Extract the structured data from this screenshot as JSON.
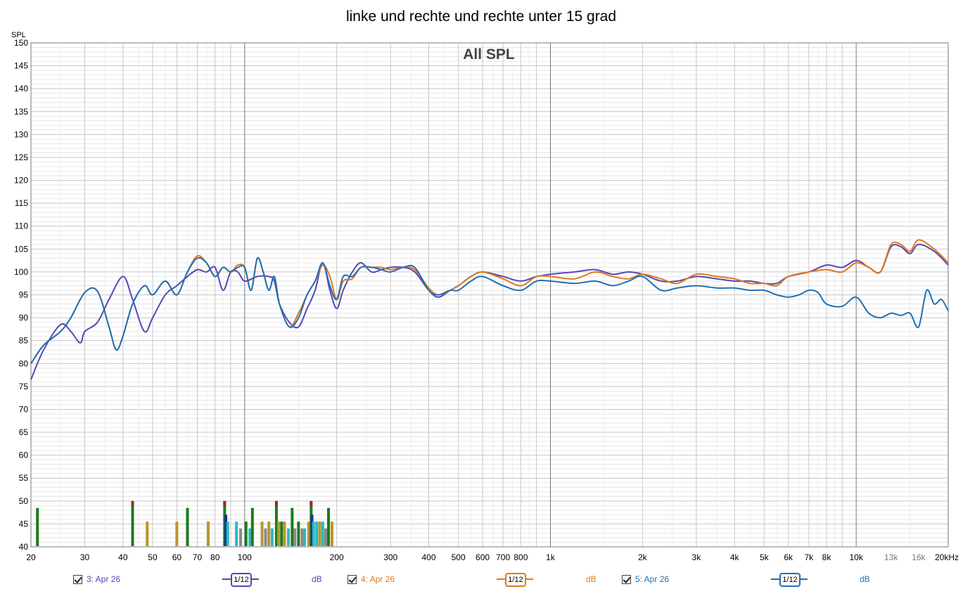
{
  "chart_data": {
    "type": "line",
    "title": "linke und rechte und rechte unter 15 grad",
    "subtitle": "All SPL",
    "ylabel": "SPL",
    "ylim": [
      40,
      150
    ],
    "xlim": [
      20,
      20000
    ],
    "xscale": "log",
    "grid": true,
    "y_ticks": [
      "40",
      "45",
      "50",
      "55",
      "60",
      "65",
      "70",
      "75",
      "80",
      "85",
      "90",
      "95",
      "100",
      "105",
      "110",
      "115",
      "120",
      "125",
      "130",
      "135",
      "140",
      "145",
      "150"
    ],
    "x_ticks": [
      {
        "value": 20,
        "label": "20"
      },
      {
        "value": 30,
        "label": "30"
      },
      {
        "value": 40,
        "label": "40"
      },
      {
        "value": 50,
        "label": "50"
      },
      {
        "value": 60,
        "label": "60"
      },
      {
        "value": 70,
        "label": "70"
      },
      {
        "value": 80,
        "label": "80"
      },
      {
        "value": 100,
        "label": "100"
      },
      {
        "value": 200,
        "label": "200"
      },
      {
        "value": 300,
        "label": "300"
      },
      {
        "value": 400,
        "label": "400"
      },
      {
        "value": 500,
        "label": "500"
      },
      {
        "value": 600,
        "label": "600"
      },
      {
        "value": 700,
        "label": "700"
      },
      {
        "value": 800,
        "label": "800"
      },
      {
        "value": 1000,
        "label": "1k"
      },
      {
        "value": 2000,
        "label": "2k"
      },
      {
        "value": 3000,
        "label": "3k"
      },
      {
        "value": 4000,
        "label": "4k"
      },
      {
        "value": 5000,
        "label": "5k"
      },
      {
        "value": 6000,
        "label": "6k"
      },
      {
        "value": 7000,
        "label": "7k"
      },
      {
        "value": 8000,
        "label": "8k"
      },
      {
        "value": 10000,
        "label": "10k"
      },
      {
        "value": 13000,
        "label": "13k"
      },
      {
        "value": 16000,
        "label": "16k"
      },
      {
        "value": 20000,
        "label": "20kHz"
      }
    ],
    "series": [
      {
        "name": "3: Apr 26",
        "color": "#5b45b5",
        "x": [
          20,
          22,
          25,
          27,
          29,
          30,
          33,
          36,
          40,
          43,
          47,
          50,
          55,
          60,
          65,
          70,
          75,
          80,
          85,
          90,
          95,
          100,
          110,
          120,
          125,
          130,
          140,
          150,
          160,
          170,
          180,
          190,
          200,
          210,
          225,
          240,
          260,
          280,
          300,
          330,
          360,
          400,
          430,
          470,
          500,
          550,
          600,
          700,
          800,
          900,
          1000,
          1200,
          1400,
          1600,
          1800,
          2000,
          2300,
          2600,
          3000,
          3500,
          4000,
          4500,
          5000,
          5500,
          6000,
          7000,
          8000,
          9000,
          10000,
          11000,
          12000,
          13000,
          14000,
          15000,
          16000,
          18000,
          20000
        ],
        "y": [
          76.5,
          83,
          88.5,
          87,
          84.5,
          87,
          89,
          94,
          99,
          94,
          87,
          90,
          95,
          97,
          99,
          100.5,
          100,
          101,
          96,
          100,
          100,
          98,
          99,
          99,
          98,
          93,
          89,
          88,
          92,
          96,
          102,
          96,
          92,
          96,
          100,
          102,
          100,
          100.5,
          101,
          101,
          100,
          96,
          94.5,
          96,
          97,
          99,
          100,
          99,
          98,
          99,
          99.5,
          100,
          100.5,
          99.5,
          100,
          99.5,
          98,
          98,
          99,
          98.5,
          98,
          98,
          97.5,
          97.5,
          99,
          100,
          101.5,
          101,
          102.5,
          101,
          100,
          105.5,
          105.5,
          104,
          106,
          104.5,
          101.5
        ]
      },
      {
        "name": "4: Apr 26",
        "color": "#dd7a1a",
        "x": [
          20,
          22,
          25,
          27,
          30,
          33,
          36,
          38,
          40,
          43,
          47,
          50,
          55,
          60,
          65,
          70,
          75,
          80,
          85,
          90,
          95,
          100,
          105,
          110,
          115,
          120,
          125,
          130,
          140,
          150,
          160,
          170,
          180,
          190,
          200,
          210,
          225,
          240,
          260,
          280,
          300,
          330,
          360,
          400,
          430,
          470,
          500,
          550,
          600,
          700,
          800,
          900,
          1000,
          1200,
          1400,
          1600,
          1800,
          2000,
          2300,
          2600,
          3000,
          3500,
          4000,
          4500,
          5000,
          5500,
          6000,
          7000,
          8000,
          9000,
          10000,
          11000,
          12000,
          13000,
          14000,
          15000,
          16000,
          18000,
          20000
        ],
        "y": [
          80,
          84,
          87,
          90,
          95.5,
          95.8,
          88,
          83,
          86,
          93,
          97,
          95,
          98,
          95,
          100,
          103.5,
          102,
          99,
          101,
          100,
          101.5,
          101,
          96,
          103,
          100,
          96,
          99,
          93,
          88,
          91,
          95,
          98,
          101.5,
          99,
          94,
          98,
          98.5,
          101,
          101,
          101,
          100.5,
          101,
          100.5,
          96.5,
          95,
          96,
          97,
          99,
          100,
          98.5,
          97,
          99,
          99,
          98.5,
          100,
          99,
          98.5,
          99.5,
          98.5,
          97.5,
          99.5,
          99,
          98.5,
          97.5,
          97.5,
          97,
          99,
          100,
          100.5,
          100,
          102,
          101,
          100,
          106,
          106,
          104.5,
          107,
          105,
          102
        ]
      },
      {
        "name": "5: Apr 26",
        "color": "#1f6fb5",
        "x": [
          20,
          22,
          25,
          27,
          30,
          33,
          36,
          38,
          40,
          43,
          47,
          50,
          55,
          60,
          65,
          70,
          75,
          80,
          85,
          90,
          95,
          100,
          105,
          110,
          115,
          120,
          125,
          130,
          140,
          150,
          160,
          170,
          180,
          190,
          200,
          210,
          225,
          240,
          260,
          280,
          300,
          330,
          360,
          400,
          430,
          470,
          500,
          550,
          600,
          700,
          800,
          900,
          1000,
          1200,
          1400,
          1600,
          1800,
          2000,
          2300,
          2600,
          3000,
          3500,
          4000,
          4500,
          5000,
          5500,
          6000,
          6500,
          7000,
          7500,
          8000,
          9000,
          10000,
          11000,
          12000,
          13000,
          14000,
          15000,
          16000,
          17000,
          18000,
          19000,
          20000
        ],
        "y": [
          80,
          84,
          87,
          90,
          95.5,
          95.8,
          88,
          83,
          86,
          93,
          97,
          95,
          98,
          95,
          100,
          103,
          102,
          99,
          101,
          100,
          101,
          101,
          96,
          103,
          100,
          96,
          99,
          93,
          88,
          90,
          95,
          98,
          102,
          97,
          94,
          99,
          99,
          101,
          101,
          100.5,
          100,
          101,
          101,
          96,
          95,
          96,
          96,
          98,
          99,
          97,
          96,
          98,
          98,
          97.5,
          98,
          97,
          98,
          99,
          96,
          96.5,
          97,
          96.5,
          96.5,
          96,
          96,
          95,
          94.5,
          95,
          96,
          95.5,
          93,
          92.5,
          94.5,
          91,
          90,
          91,
          90.5,
          91,
          88,
          96,
          93,
          94,
          91.5
        ]
      }
    ],
    "bars": [
      {
        "x": 21,
        "value": 48.5,
        "color": "#1c7a1c",
        "color_top": null
      },
      {
        "x": 43,
        "value": 50,
        "color": "#1c7a1c",
        "color_top": "#b0201c"
      },
      {
        "x": 48,
        "value": 45.5,
        "color": "#b8962a",
        "color_top": null
      },
      {
        "x": 60,
        "value": 45.5,
        "color": "#b8962a",
        "color_top": null
      },
      {
        "x": 65,
        "value": 48.5,
        "color": "#1c7a1c",
        "color_top": null
      },
      {
        "x": 76,
        "value": 45.5,
        "color": "#b8962a",
        "color_top": null
      },
      {
        "x": 86,
        "value": 50,
        "color": "#1c7a1c",
        "color_top": "#b0201c"
      },
      {
        "x": 86.8,
        "value": 47,
        "color": "#1a2f9e",
        "color_top": null
      },
      {
        "x": 88,
        "value": 45.5,
        "color": "#2ab8c6",
        "color_top": null
      },
      {
        "x": 94,
        "value": 45.5,
        "color": "#2ab8c6",
        "color_top": null
      },
      {
        "x": 97,
        "value": 44,
        "color": "#8a8a8a",
        "color_top": null
      },
      {
        "x": 101,
        "value": 45.5,
        "color": "#1c7a1c",
        "color_top": null
      },
      {
        "x": 104,
        "value": 44,
        "color": "#2ab8c6",
        "color_top": null
      },
      {
        "x": 106,
        "value": 48.5,
        "color": "#1c7a1c",
        "color_top": null
      },
      {
        "x": 114,
        "value": 45.5,
        "color": "#b8962a",
        "color_top": null
      },
      {
        "x": 117,
        "value": 44,
        "color": "#8a8a8a",
        "color_top": null
      },
      {
        "x": 120,
        "value": 45.5,
        "color": "#b8962a",
        "color_top": null
      },
      {
        "x": 123,
        "value": 44,
        "color": "#2ab8c6",
        "color_top": null
      },
      {
        "x": 127,
        "value": 50,
        "color": "#1c7a1c",
        "color_top": "#b0201c"
      },
      {
        "x": 129,
        "value": 45.5,
        "color": "#b8962a",
        "color_top": null
      },
      {
        "x": 132,
        "value": 45.5,
        "color": "#1c7a1c",
        "color_top": null
      },
      {
        "x": 135,
        "value": 45.5,
        "color": "#b8962a",
        "color_top": null
      },
      {
        "x": 139,
        "value": 44,
        "color": "#2ab8c6",
        "color_top": null
      },
      {
        "x": 143,
        "value": 48.5,
        "color": "#1c7a1c",
        "color_top": null
      },
      {
        "x": 146,
        "value": 44,
        "color": "#8a8a8a",
        "color_top": null
      },
      {
        "x": 150,
        "value": 45.5,
        "color": "#1c7a1c",
        "color_top": null
      },
      {
        "x": 154,
        "value": 44,
        "color": "#8a8a8a",
        "color_top": null
      },
      {
        "x": 157,
        "value": 44,
        "color": "#2ab8c6",
        "color_top": null
      },
      {
        "x": 162,
        "value": 45.5,
        "color": "#b8962a",
        "color_top": null
      },
      {
        "x": 165,
        "value": 50,
        "color": "#1c7a1c",
        "color_top": "#b0201c"
      },
      {
        "x": 166,
        "value": 47,
        "color": "#1a2f9e",
        "color_top": null
      },
      {
        "x": 168,
        "value": 45.5,
        "color": "#2ab8c6",
        "color_top": null
      },
      {
        "x": 172,
        "value": 45.5,
        "color": "#2ab8c6",
        "color_top": null
      },
      {
        "x": 176,
        "value": 45.5,
        "color": "#b8962a",
        "color_top": null
      },
      {
        "x": 180,
        "value": 45.5,
        "color": "#2ab8c6",
        "color_top": null
      },
      {
        "x": 184,
        "value": 44,
        "color": "#8a8a8a",
        "color_top": null
      },
      {
        "x": 188,
        "value": 48.5,
        "color": "#1c7a1c",
        "color_top": null
      },
      {
        "x": 193,
        "value": 45.5,
        "color": "#b8962a",
        "color_top": null
      }
    ]
  },
  "legend": [
    {
      "label": "3: Apr 26",
      "checked": true,
      "smoothing": "1/12",
      "unit": "dB",
      "color": "#5b45b5"
    },
    {
      "label": "4: Apr 26",
      "checked": true,
      "smoothing": "1/12",
      "unit": "dB",
      "color": "#dd7a1a"
    },
    {
      "label": "5: Apr 26",
      "checked": true,
      "smoothing": "1/12",
      "unit": "dB",
      "color": "#1f6fb5"
    }
  ]
}
